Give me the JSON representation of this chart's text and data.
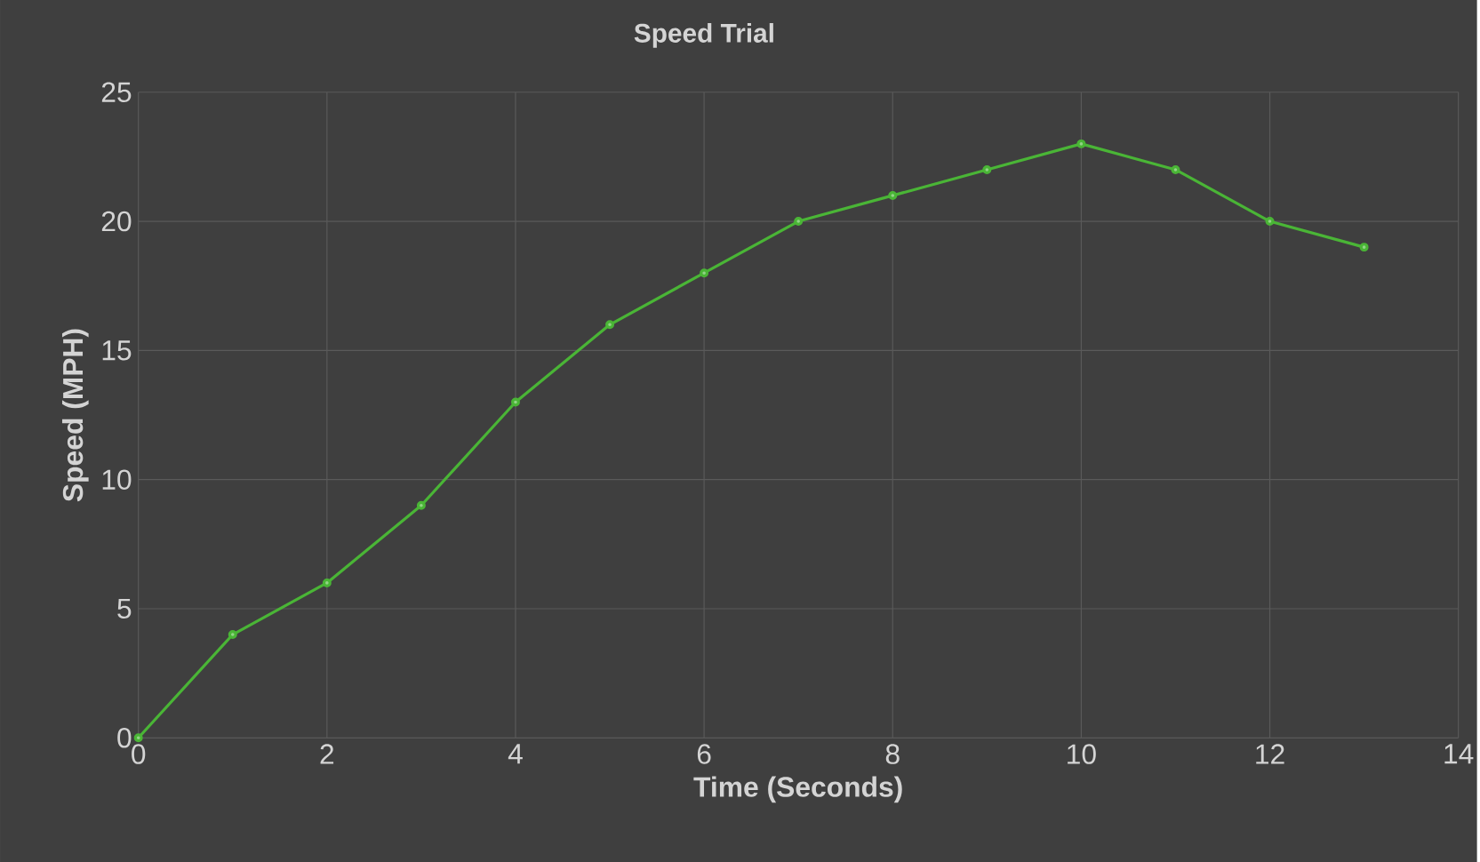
{
  "chart_data": {
    "type": "line",
    "title": "Speed Trial",
    "xlabel": "Time (Seconds)",
    "ylabel": "Speed (MPH)",
    "x": [
      0,
      1,
      2,
      3,
      4,
      5,
      6,
      7,
      8,
      9,
      10,
      11,
      12,
      13
    ],
    "values": [
      0,
      4,
      6,
      9,
      13,
      16,
      18,
      20,
      21,
      22,
      23,
      22,
      20,
      19
    ],
    "color": "#4ab536",
    "xlim": [
      0,
      14
    ],
    "ylim": [
      0,
      25
    ],
    "xticks": [
      0,
      2,
      4,
      6,
      8,
      10,
      12,
      14
    ],
    "yticks": [
      0,
      5,
      10,
      15,
      20,
      25
    ],
    "grid": true,
    "marker": "circle",
    "line_style": "solid"
  }
}
